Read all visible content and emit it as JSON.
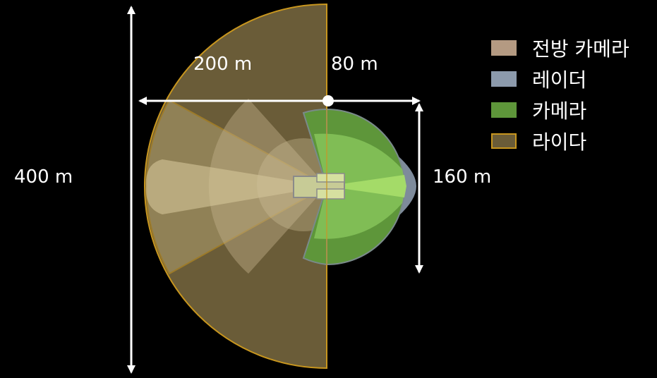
{
  "dimensions": {
    "width_400": "400 m",
    "rear_200": "200 m",
    "front_80": "80 m",
    "height_160": "160 m"
  },
  "legend": [
    {
      "label": "전방 카메라",
      "color": "#b49a82",
      "border": "#b49a82"
    },
    {
      "label": "레이더",
      "color": "#8c9aac",
      "border": "#8c9aac"
    },
    {
      "label": "카메라",
      "color": "#5e963a",
      "border": "#5e963a"
    },
    {
      "label": "라이다",
      "color": "#6a5c38",
      "border": "#c8961e"
    }
  ]
}
